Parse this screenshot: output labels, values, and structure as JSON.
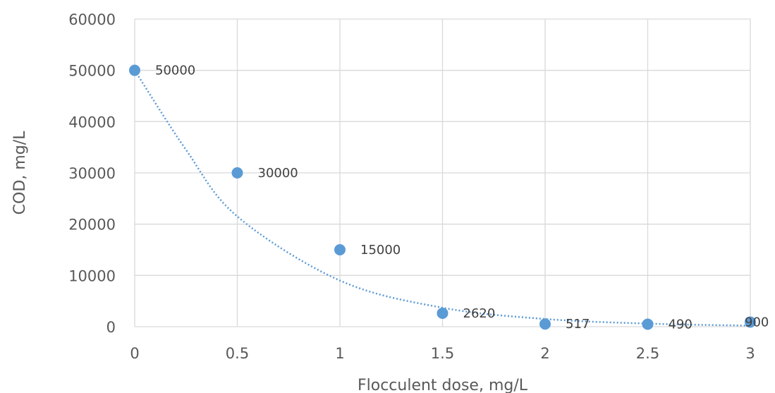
{
  "chart_data": {
    "type": "scatter",
    "xlabel": "Flocculent dose, mg/L",
    "ylabel": "COD, mg/L",
    "xlim": [
      0,
      3
    ],
    "ylim": [
      0,
      60000
    ],
    "x_ticks": [
      "0",
      "0.5",
      "1",
      "1.5",
      "2",
      "2.5",
      "3"
    ],
    "y_ticks": [
      "0",
      "10000",
      "20000",
      "30000",
      "40000",
      "50000",
      "60000"
    ],
    "grid": "both",
    "series": [
      {
        "color": "#5b9bd5",
        "points": [
          {
            "x": 0,
            "y": 50000,
            "label": "50000"
          },
          {
            "x": 0.5,
            "y": 30000,
            "label": "30000"
          },
          {
            "x": 1,
            "y": 15000,
            "label": "15000"
          },
          {
            "x": 1.5,
            "y": 2620,
            "label": "2620"
          },
          {
            "x": 2,
            "y": 517,
            "label": "517"
          },
          {
            "x": 2.5,
            "y": 490,
            "label": "490"
          },
          {
            "x": 3,
            "y": 900,
            "label": "900"
          }
        ]
      }
    ],
    "trendline": {
      "style": "dotted",
      "color": "#5b9bd5",
      "points": [
        {
          "x": 0,
          "y": 50000
        },
        {
          "x": 0.25,
          "y": 34500
        },
        {
          "x": 0.5,
          "y": 21500
        },
        {
          "x": 1,
          "y": 9000
        },
        {
          "x": 1.5,
          "y": 3700
        },
        {
          "x": 2,
          "y": 1500
        },
        {
          "x": 2.5,
          "y": 600
        },
        {
          "x": 3,
          "y": 200
        }
      ]
    }
  }
}
